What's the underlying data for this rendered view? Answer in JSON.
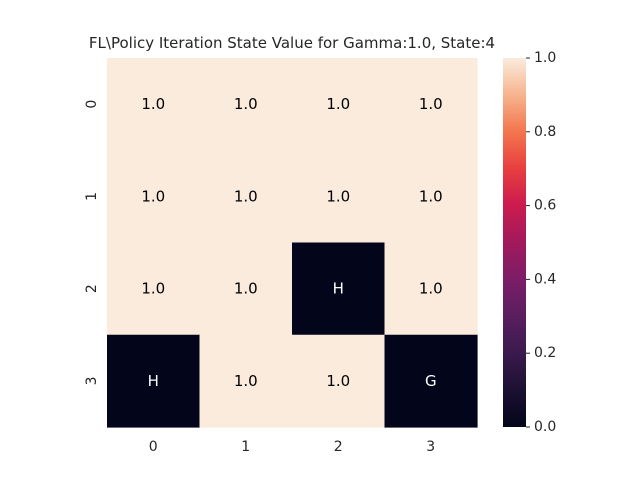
{
  "chart_data": {
    "type": "heatmap",
    "title": "FL\\Policy Iteration State Value for Gamma:1.0, State:4",
    "xlabel": "",
    "ylabel": "",
    "x_ticks": [
      "0",
      "1",
      "2",
      "3"
    ],
    "y_ticks": [
      "0",
      "1",
      "2",
      "3"
    ],
    "values": [
      [
        1.0,
        1.0,
        1.0,
        1.0
      ],
      [
        1.0,
        1.0,
        1.0,
        1.0
      ],
      [
        1.0,
        1.0,
        0.0,
        1.0
      ],
      [
        0.0,
        1.0,
        1.0,
        0.0
      ]
    ],
    "annotations": [
      [
        "1.0",
        "1.0",
        "1.0",
        "1.0"
      ],
      [
        "1.0",
        "1.0",
        "1.0",
        "1.0"
      ],
      [
        "1.0",
        "1.0",
        "H",
        "1.0"
      ],
      [
        "H",
        "1.0",
        "1.0",
        "G"
      ]
    ],
    "colorbar": {
      "min": 0.0,
      "max": 1.0,
      "ticks": [
        "0.0",
        "0.2",
        "0.4",
        "0.6",
        "0.8",
        "1.0"
      ]
    },
    "colors": {
      "low": "#03051a",
      "high": "#faebdd"
    }
  }
}
